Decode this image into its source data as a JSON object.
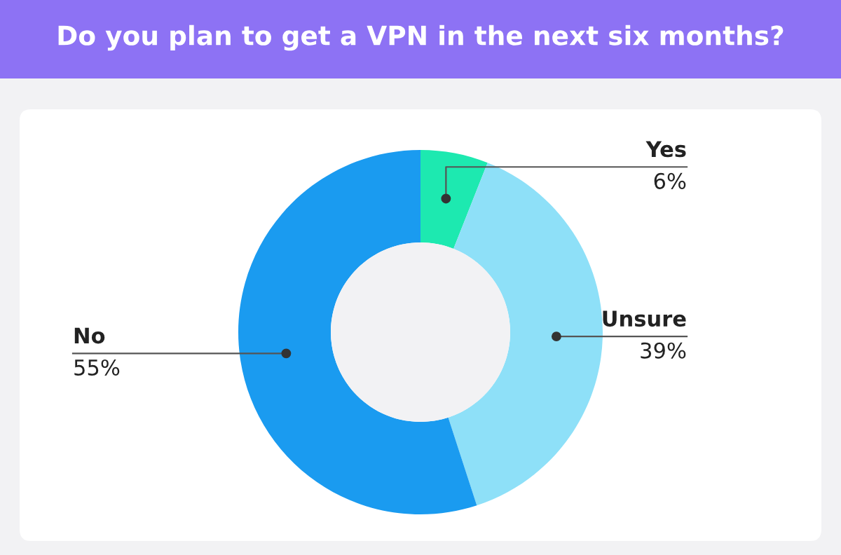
{
  "chart_data": {
    "type": "donut",
    "title": "Do you plan to get a VPN in the next six months?",
    "categories": [
      "Yes",
      "Unsure",
      "No"
    ],
    "values": [
      6,
      39,
      55
    ],
    "value_labels": [
      "6%",
      "39%",
      "55%"
    ],
    "colors": [
      "#1de9b0",
      "#8ee0f8",
      "#1a9bf0"
    ],
    "legend": false
  }
}
